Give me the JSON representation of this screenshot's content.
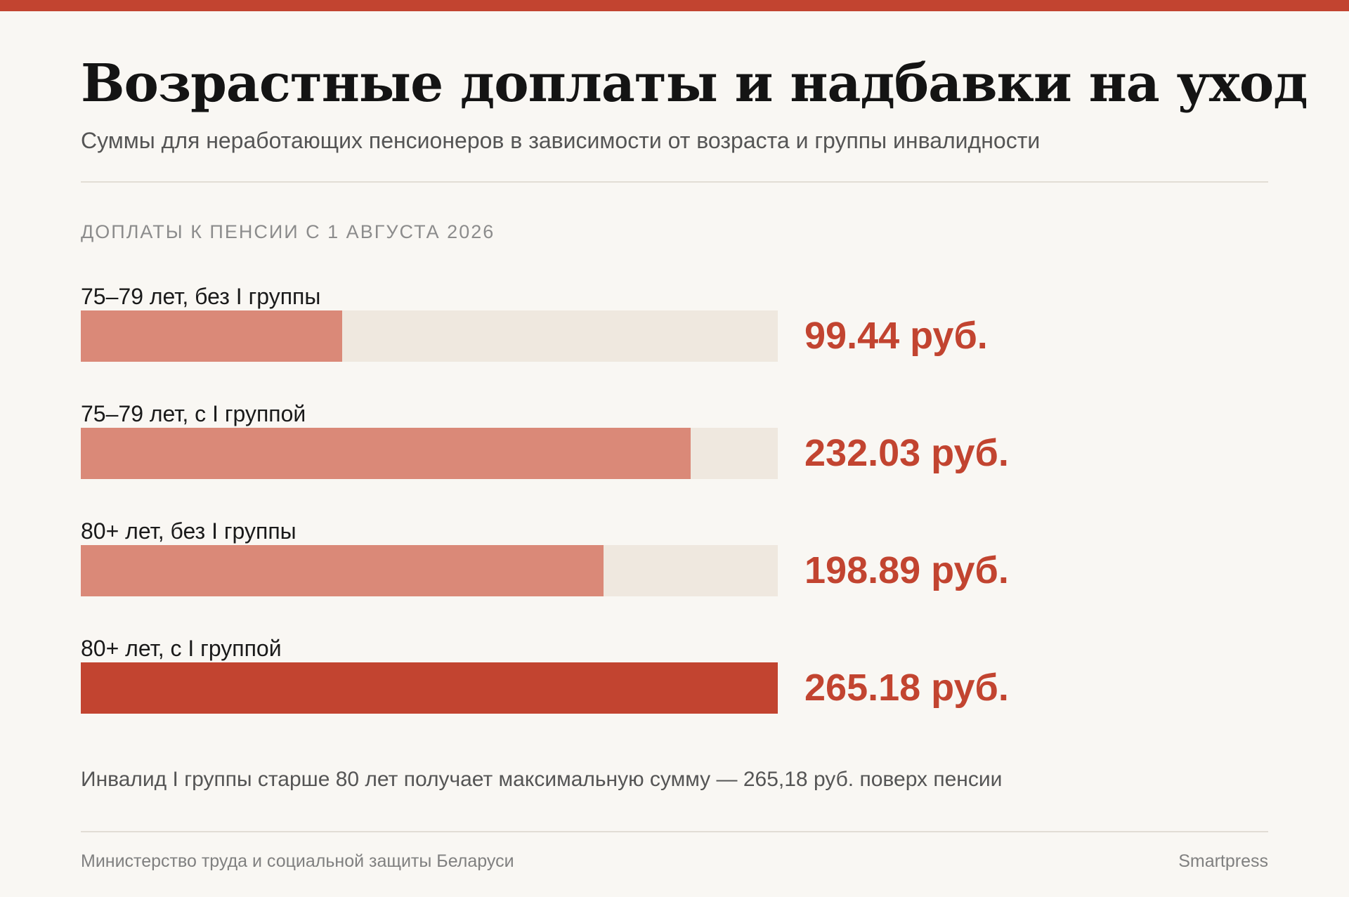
{
  "header": {
    "title": "Возрастные доплаты и надбавки на уход",
    "subtitle": "Суммы для неработающих пенсионеров в зависимости от возраста и группы инвалидности"
  },
  "section_label": "ДОПЛАТЫ К ПЕНСИИ С 1 АВГУСТА 2026",
  "colors": {
    "accent": "#c24430",
    "bar_light": "#da8978",
    "track": "#efe8df",
    "background": "#f9f7f3"
  },
  "chart_data": {
    "type": "bar",
    "orientation": "horizontal",
    "categories": [
      "75–79 лет, без I группы",
      "75–79 лет, с I группой",
      "80+ лет, без I группы",
      "80+ лет, с I группой"
    ],
    "values": [
      99.44,
      232.03,
      198.89,
      265.18
    ],
    "value_labels": [
      "99.44 руб.",
      "232.03 руб.",
      "198.89 руб.",
      "265.18 руб."
    ],
    "xlim": [
      0,
      265.18
    ],
    "highlight_index": 3,
    "grid": false
  },
  "note": "Инвалид I группы старше 80 лет получает максимальную сумму — 265,18 руб. поверх пенсии",
  "footer": {
    "source": "Министерство труда и социальной защиты Беларуси",
    "brand": "Smartpress"
  }
}
